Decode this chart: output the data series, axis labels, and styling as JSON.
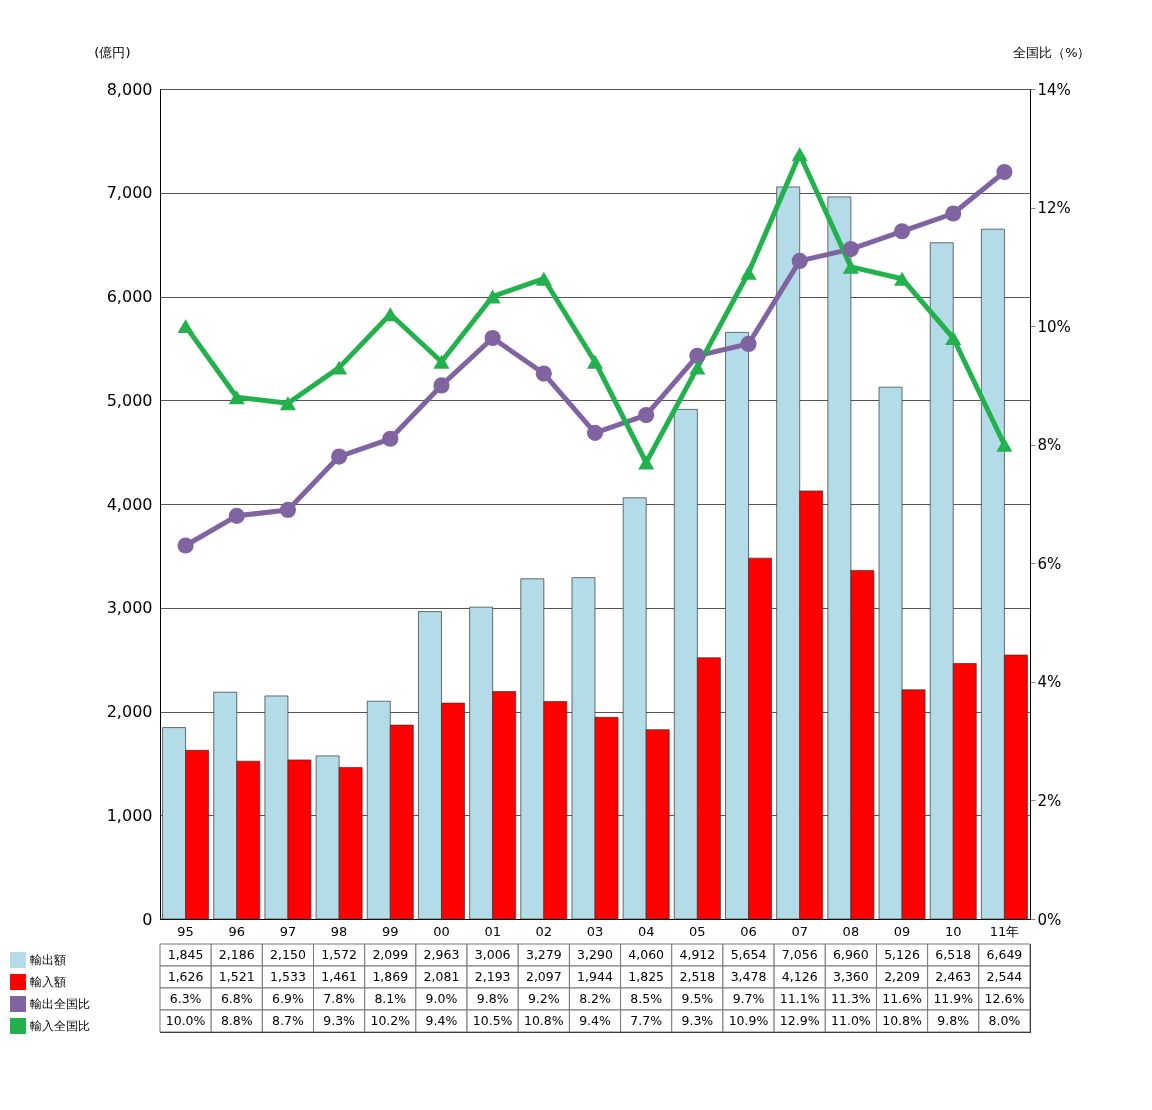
{
  "chart_data": {
    "type": "bar",
    "ylabel": "(億円)",
    "y2label": "全国比（%）",
    "categories": [
      "95",
      "96",
      "97",
      "98",
      "99",
      "00",
      "01",
      "02",
      "03",
      "04",
      "05",
      "06",
      "07",
      "08",
      "09",
      "10",
      "11年"
    ],
    "series": [
      {
        "name": "輸出額",
        "color": "#b4dce8",
        "values": [
          1845,
          2186,
          2150,
          1572,
          2099,
          2963,
          3006,
          3279,
          3290,
          4060,
          4912,
          5654,
          7056,
          6960,
          5126,
          6518,
          6649
        ],
        "value_labels": [
          "1,845",
          "2,186",
          "2,150",
          "1,572",
          "2,099",
          "2,963",
          "3,006",
          "3,279",
          "3,290",
          "4,060",
          "4,912",
          "5,654",
          "7,056",
          "6,960",
          "5,126",
          "6,518",
          "6,649"
        ]
      },
      {
        "name": "輸入額",
        "color": "#ff0000",
        "values": [
          1626,
          1521,
          1533,
          1461,
          1869,
          2081,
          2193,
          2097,
          1944,
          1825,
          2518,
          3478,
          4126,
          3360,
          2209,
          2463,
          2544
        ],
        "value_labels": [
          "1,626",
          "1,521",
          "1,533",
          "1,461",
          "1,869",
          "2,081",
          "2,193",
          "2,097",
          "1,944",
          "1,825",
          "2,518",
          "3,478",
          "4,126",
          "3,360",
          "2,209",
          "2,463",
          "2,544"
        ]
      },
      {
        "name": "輸出全国比",
        "type": "line",
        "axis": "y2",
        "marker": "circle",
        "color": "#8064a2",
        "values": [
          6.3,
          6.8,
          6.9,
          7.8,
          8.1,
          9.0,
          9.8,
          9.2,
          8.2,
          8.5,
          9.5,
          9.7,
          11.1,
          11.3,
          11.6,
          11.9,
          12.6
        ],
        "value_labels": [
          "6.3%",
          "6.8%",
          "6.9%",
          "7.8%",
          "8.1%",
          "9.0%",
          "9.8%",
          "9.2%",
          "8.2%",
          "8.5%",
          "9.5%",
          "9.7%",
          "11.1%",
          "11.3%",
          "11.6%",
          "11.9%",
          "12.6%"
        ]
      },
      {
        "name": "輸入全国比",
        "type": "line",
        "axis": "y2",
        "marker": "triangle",
        "color": "#22b14c",
        "values": [
          10.0,
          8.8,
          8.7,
          9.3,
          10.2,
          9.4,
          10.5,
          10.8,
          9.4,
          7.7,
          9.3,
          10.9,
          12.9,
          11.0,
          10.8,
          9.8,
          8.0
        ],
        "value_labels": [
          "10.0%",
          "8.8%",
          "8.7%",
          "9.3%",
          "10.2%",
          "9.4%",
          "10.5%",
          "10.8%",
          "9.4%",
          "7.7%",
          "9.3%",
          "10.9%",
          "12.9%",
          "11.0%",
          "10.8%",
          "9.8%",
          "8.0%"
        ]
      }
    ],
    "ylim": [
      0,
      8000
    ],
    "yticks": [
      0,
      {
        "value": 1000,
        "label": "1,000"
      },
      {
        "value": 2000,
        "label": "2,000"
      },
      {
        "value": 3000,
        "label": "3,000"
      },
      {
        "value": 4000,
        "label": "4,000"
      },
      {
        "value": 5000,
        "label": "5,000"
      },
      {
        "value": 6000,
        "label": "6,000"
      },
      {
        "value": 7000,
        "label": "7,000"
      },
      {
        "value": 8000,
        "label": "8,000"
      }
    ],
    "y2lim": [
      0,
      14
    ],
    "y2ticks": [
      {
        "value": 0,
        "label": "0%"
      },
      {
        "value": 2,
        "label": "2%"
      },
      {
        "value": 4,
        "label": "4%"
      },
      {
        "value": 6,
        "label": "6%"
      },
      {
        "value": 8,
        "label": "8%"
      },
      {
        "value": 10,
        "label": "10%"
      },
      {
        "value": 12,
        "label": "12%"
      },
      {
        "value": 14,
        "label": "14%"
      }
    ],
    "grid": "y",
    "legend": "bottom"
  }
}
